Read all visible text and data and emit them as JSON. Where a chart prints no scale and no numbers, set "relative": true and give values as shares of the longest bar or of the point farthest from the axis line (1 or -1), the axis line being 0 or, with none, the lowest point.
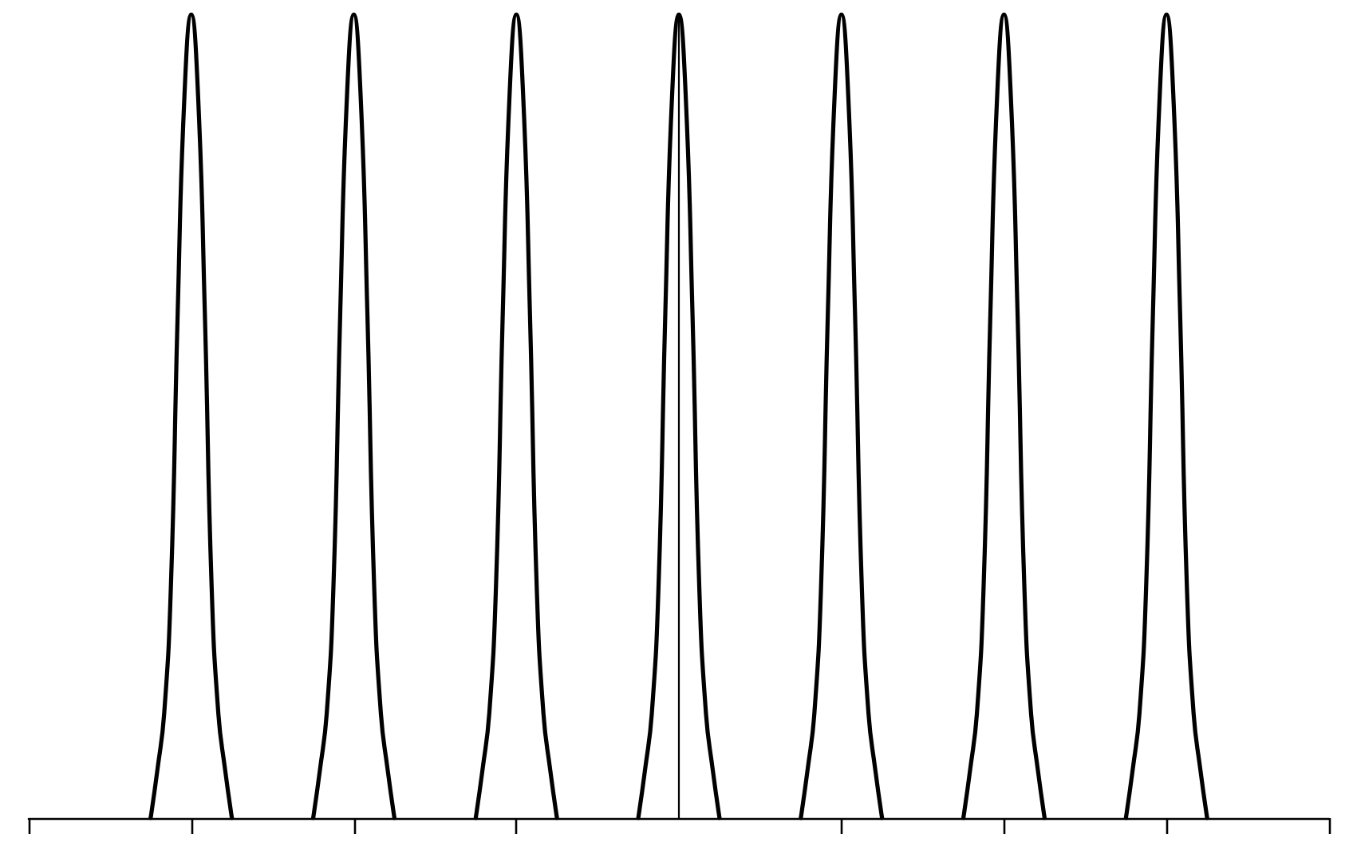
{
  "chart_data": {
    "type": "line",
    "relative": true,
    "marker": "none",
    "line_style": "solid",
    "categories": [
      null,
      null,
      null,
      null,
      null,
      null,
      null,
      null,
      null,
      null,
      null,
      null,
      null,
      null,
      null,
      null,
      null,
      null,
      null,
      null,
      null,
      null,
      null,
      null,
      null,
      null,
      null,
      null,
      null,
      null,
      null,
      null,
      null,
      null,
      null,
      null,
      null,
      null,
      null,
      null,
      null,
      null,
      null,
      null,
      null,
      null,
      null,
      null,
      null,
      null,
      null,
      null,
      null,
      null,
      null,
      null,
      null,
      null,
      null,
      null,
      null,
      null,
      null,
      null,
      null,
      null,
      null,
      null,
      null,
      null,
      null,
      null,
      null,
      null,
      null,
      null,
      null,
      null,
      null,
      null,
      null,
      null,
      null,
      null,
      null,
      null,
      null,
      null,
      null,
      null,
      null,
      null,
      null,
      null,
      null,
      null,
      null,
      null,
      null,
      null,
      null,
      null,
      null,
      null,
      null,
      null,
      null,
      null,
      null,
      null,
      null,
      null,
      null,
      null,
      null,
      null,
      null,
      null,
      null,
      null,
      null,
      null,
      null,
      null,
      null,
      null,
      null,
      null,
      null,
      null,
      null,
      null,
      null,
      null,
      null,
      null,
      null,
      null,
      null,
      null,
      null,
      null,
      null,
      null,
      null,
      null,
      null,
      null,
      null,
      null,
      null,
      null,
      null,
      null,
      null,
      null,
      null,
      null,
      null,
      null,
      null,
      null,
      null,
      null,
      null,
      null,
      null,
      null,
      null,
      null,
      null,
      null,
      null,
      null,
      null,
      null,
      null,
      null,
      null,
      null,
      null,
      null,
      null,
      null,
      null,
      null,
      null,
      null,
      null,
      null,
      null,
      null,
      null
    ],
    "series": [
      {
        "color": "#000000",
        "values": [
          null,
          null,
          null,
          null,
          null,
          null,
          null,
          null,
          null,
          null,
          null,
          null,
          null,
          null,
          null,
          null,
          null,
          null,
          0,
          0.06,
          0.13,
          0.29,
          0.63,
          0.9,
          1,
          0.9,
          0.63,
          0.29,
          0.13,
          0.06,
          0,
          null,
          null,
          null,
          null,
          null,
          null,
          null,
          null,
          null,
          null,
          null,
          null,
          null,
          null,
          null,
          null,
          null,
          null,
          null,
          null,
          null,
          null,
          null,
          null,
          null,
          null,
          null,
          null,
          null,
          null,
          null,
          null,
          null,
          null,
          null,
          null,
          null,
          null,
          null,
          null,
          null,
          null,
          null,
          null,
          null,
          null,
          null,
          null,
          null,
          null,
          null,
          null,
          null,
          null,
          null,
          null,
          null,
          null,
          null,
          null,
          null,
          null,
          null,
          null,
          null,
          null,
          null,
          null,
          null,
          null,
          null,
          null,
          null,
          null,
          null,
          null,
          null,
          null,
          null,
          null,
          null,
          null,
          null,
          null,
          null,
          null,
          null,
          null,
          null,
          null,
          null,
          null,
          null,
          null,
          null,
          null,
          null,
          null,
          null,
          null,
          null,
          null,
          null,
          null,
          null,
          null,
          null,
          null,
          null,
          null,
          null,
          null,
          null,
          null,
          null,
          null,
          null,
          null,
          null,
          null,
          null,
          null,
          null,
          null,
          null,
          null,
          null,
          null,
          null,
          null,
          null,
          null,
          null,
          null,
          null,
          null,
          null,
          null,
          null,
          null,
          null,
          null,
          null,
          null,
          null,
          null,
          null,
          null,
          null,
          null,
          null,
          null,
          null,
          null,
          null,
          null,
          null,
          null,
          null,
          null,
          null,
          null
        ]
      },
      {
        "color": "#000000",
        "values": [
          null,
          null,
          null,
          null,
          null,
          null,
          null,
          null,
          null,
          null,
          null,
          null,
          null,
          null,
          null,
          null,
          null,
          null,
          null,
          null,
          null,
          null,
          null,
          null,
          null,
          null,
          null,
          null,
          null,
          null,
          null,
          null,
          null,
          null,
          null,
          null,
          null,
          null,
          null,
          null,
          null,
          null,
          0,
          0.06,
          0.13,
          0.29,
          0.63,
          0.9,
          1,
          0.9,
          0.63,
          0.29,
          0.13,
          0.06,
          0,
          null,
          null,
          null,
          null,
          null,
          null,
          null,
          null,
          null,
          null,
          null,
          null,
          null,
          null,
          null,
          null,
          null,
          null,
          null,
          null,
          null,
          null,
          null,
          null,
          null,
          null,
          null,
          null,
          null,
          null,
          null,
          null,
          null,
          null,
          null,
          null,
          null,
          null,
          null,
          null,
          null,
          null,
          null,
          null,
          null,
          null,
          null,
          null,
          null,
          null,
          null,
          null,
          null,
          null,
          null,
          null,
          null,
          null,
          null,
          null,
          null,
          null,
          null,
          null,
          null,
          null,
          null,
          null,
          null,
          null,
          null,
          null,
          null,
          null,
          null,
          null,
          null,
          null,
          null,
          null,
          null,
          null,
          null,
          null,
          null,
          null,
          null,
          null,
          null,
          null,
          null,
          null,
          null,
          null,
          null,
          null,
          null,
          null,
          null,
          null,
          null,
          null,
          null,
          null,
          null,
          null,
          null,
          null,
          null,
          null,
          null,
          null,
          null,
          null,
          null,
          null,
          null,
          null,
          null,
          null,
          null,
          null,
          null,
          null,
          null,
          null,
          null,
          null,
          null,
          null,
          null,
          null,
          null,
          null,
          null,
          null,
          null,
          null
        ]
      },
      {
        "color": "#000000",
        "values": [
          null,
          null,
          null,
          null,
          null,
          null,
          null,
          null,
          null,
          null,
          null,
          null,
          null,
          null,
          null,
          null,
          null,
          null,
          null,
          null,
          null,
          null,
          null,
          null,
          null,
          null,
          null,
          null,
          null,
          null,
          null,
          null,
          null,
          null,
          null,
          null,
          null,
          null,
          null,
          null,
          null,
          null,
          null,
          null,
          null,
          null,
          null,
          null,
          null,
          null,
          null,
          null,
          null,
          null,
          null,
          null,
          null,
          null,
          null,
          null,
          null,
          null,
          null,
          null,
          null,
          null,
          0,
          0.06,
          0.13,
          0.29,
          0.63,
          0.9,
          1,
          0.9,
          0.63,
          0.29,
          0.13,
          0.06,
          0,
          null,
          null,
          null,
          null,
          null,
          null,
          null,
          null,
          null,
          null,
          null,
          null,
          null,
          null,
          null,
          null,
          null,
          null,
          null,
          null,
          null,
          null,
          null,
          null,
          null,
          null,
          null,
          null,
          null,
          null,
          null,
          null,
          null,
          null,
          null,
          null,
          null,
          null,
          null,
          null,
          null,
          null,
          null,
          null,
          null,
          null,
          null,
          null,
          null,
          null,
          null,
          null,
          null,
          null,
          null,
          null,
          null,
          null,
          null,
          null,
          null,
          null,
          null,
          null,
          null,
          null,
          null,
          null,
          null,
          null,
          null,
          null,
          null,
          null,
          null,
          null,
          null,
          null,
          null,
          null,
          null,
          null,
          null,
          null,
          null,
          null,
          null,
          null,
          null,
          null,
          null,
          null,
          null,
          null,
          null,
          null,
          null,
          null,
          null,
          null,
          null,
          null,
          null,
          null,
          null,
          null,
          null,
          null,
          null,
          null,
          null,
          null,
          null,
          null
        ]
      },
      {
        "color": "#000000",
        "values": [
          null,
          null,
          null,
          null,
          null,
          null,
          null,
          null,
          null,
          null,
          null,
          null,
          null,
          null,
          null,
          null,
          null,
          null,
          null,
          null,
          null,
          null,
          null,
          null,
          null,
          null,
          null,
          null,
          null,
          null,
          null,
          null,
          null,
          null,
          null,
          null,
          null,
          null,
          null,
          null,
          null,
          null,
          null,
          null,
          null,
          null,
          null,
          null,
          null,
          null,
          null,
          null,
          null,
          null,
          null,
          null,
          null,
          null,
          null,
          null,
          null,
          null,
          null,
          null,
          null,
          null,
          null,
          null,
          null,
          null,
          null,
          null,
          null,
          null,
          null,
          null,
          null,
          null,
          null,
          null,
          null,
          null,
          null,
          null,
          null,
          null,
          null,
          null,
          null,
          null,
          0,
          0.06,
          0.13,
          0.29,
          0.63,
          0.9,
          1,
          0.9,
          0.63,
          0.29,
          0.13,
          0.06,
          0,
          null,
          null,
          null,
          null,
          null,
          null,
          null,
          null,
          null,
          null,
          null,
          null,
          null,
          null,
          null,
          null,
          null,
          null,
          null,
          null,
          null,
          null,
          null,
          null,
          null,
          null,
          null,
          null,
          null,
          null,
          null,
          null,
          null,
          null,
          null,
          null,
          null,
          null,
          null,
          null,
          null,
          null,
          null,
          null,
          null,
          null,
          null,
          null,
          null,
          null,
          null,
          null,
          null,
          null,
          null,
          null,
          null,
          null,
          null,
          null,
          null,
          null,
          null,
          null,
          null,
          null,
          null,
          null,
          null,
          null,
          null,
          null,
          null,
          null,
          null,
          null,
          null,
          null,
          null,
          null,
          null,
          null,
          null,
          null,
          null,
          null,
          null,
          null,
          null,
          null
        ]
      },
      {
        "color": "#000000",
        "values": [
          null,
          null,
          null,
          null,
          null,
          null,
          null,
          null,
          null,
          null,
          null,
          null,
          null,
          null,
          null,
          null,
          null,
          null,
          null,
          null,
          null,
          null,
          null,
          null,
          null,
          null,
          null,
          null,
          null,
          null,
          null,
          null,
          null,
          null,
          null,
          null,
          null,
          null,
          null,
          null,
          null,
          null,
          null,
          null,
          null,
          null,
          null,
          null,
          null,
          null,
          null,
          null,
          null,
          null,
          null,
          null,
          null,
          null,
          null,
          null,
          null,
          null,
          null,
          null,
          null,
          null,
          null,
          null,
          null,
          null,
          null,
          null,
          null,
          null,
          null,
          null,
          null,
          null,
          null,
          null,
          null,
          null,
          null,
          null,
          null,
          null,
          null,
          null,
          null,
          null,
          null,
          null,
          null,
          null,
          null,
          null,
          null,
          null,
          null,
          null,
          null,
          null,
          null,
          null,
          null,
          null,
          null,
          null,
          null,
          null,
          null,
          null,
          null,
          null,
          0,
          0.06,
          0.13,
          0.29,
          0.63,
          0.9,
          1,
          0.9,
          0.63,
          0.29,
          0.13,
          0.06,
          0,
          null,
          null,
          null,
          null,
          null,
          null,
          null,
          null,
          null,
          null,
          null,
          null,
          null,
          null,
          null,
          null,
          null,
          null,
          null,
          null,
          null,
          null,
          null,
          null,
          null,
          null,
          null,
          null,
          null,
          null,
          null,
          null,
          null,
          null,
          null,
          null,
          null,
          null,
          null,
          null,
          null,
          null,
          null,
          null,
          null,
          null,
          null,
          null,
          null,
          null,
          null,
          null,
          null,
          null,
          null,
          null,
          null,
          null,
          null,
          null,
          null,
          null,
          null,
          null,
          null,
          null
        ]
      },
      {
        "color": "#000000",
        "values": [
          null,
          null,
          null,
          null,
          null,
          null,
          null,
          null,
          null,
          null,
          null,
          null,
          null,
          null,
          null,
          null,
          null,
          null,
          null,
          null,
          null,
          null,
          null,
          null,
          null,
          null,
          null,
          null,
          null,
          null,
          null,
          null,
          null,
          null,
          null,
          null,
          null,
          null,
          null,
          null,
          null,
          null,
          null,
          null,
          null,
          null,
          null,
          null,
          null,
          null,
          null,
          null,
          null,
          null,
          null,
          null,
          null,
          null,
          null,
          null,
          null,
          null,
          null,
          null,
          null,
          null,
          null,
          null,
          null,
          null,
          null,
          null,
          null,
          null,
          null,
          null,
          null,
          null,
          null,
          null,
          null,
          null,
          null,
          null,
          null,
          null,
          null,
          null,
          null,
          null,
          null,
          null,
          null,
          null,
          null,
          null,
          null,
          null,
          null,
          null,
          null,
          null,
          null,
          null,
          null,
          null,
          null,
          null,
          null,
          null,
          null,
          null,
          null,
          null,
          null,
          null,
          null,
          null,
          null,
          null,
          null,
          null,
          null,
          null,
          null,
          null,
          null,
          null,
          null,
          null,
          null,
          null,
          null,
          null,
          null,
          null,
          null,
          null,
          0,
          0.06,
          0.13,
          0.29,
          0.63,
          0.9,
          1,
          0.9,
          0.63,
          0.29,
          0.13,
          0.06,
          0,
          null,
          null,
          null,
          null,
          null,
          null,
          null,
          null,
          null,
          null,
          null,
          null,
          null,
          null,
          null,
          null,
          null,
          null,
          null,
          null,
          null,
          null,
          null,
          null,
          null,
          null,
          null,
          null,
          null,
          null,
          null,
          null,
          null,
          null,
          null,
          null,
          null,
          null,
          null,
          null,
          null,
          null
        ]
      },
      {
        "color": "#000000",
        "values": [
          null,
          null,
          null,
          null,
          null,
          null,
          null,
          null,
          null,
          null,
          null,
          null,
          null,
          null,
          null,
          null,
          null,
          null,
          null,
          null,
          null,
          null,
          null,
          null,
          null,
          null,
          null,
          null,
          null,
          null,
          null,
          null,
          null,
          null,
          null,
          null,
          null,
          null,
          null,
          null,
          null,
          null,
          null,
          null,
          null,
          null,
          null,
          null,
          null,
          null,
          null,
          null,
          null,
          null,
          null,
          null,
          null,
          null,
          null,
          null,
          null,
          null,
          null,
          null,
          null,
          null,
          null,
          null,
          null,
          null,
          null,
          null,
          null,
          null,
          null,
          null,
          null,
          null,
          null,
          null,
          null,
          null,
          null,
          null,
          null,
          null,
          null,
          null,
          null,
          null,
          null,
          null,
          null,
          null,
          null,
          null,
          null,
          null,
          null,
          null,
          null,
          null,
          null,
          null,
          null,
          null,
          null,
          null,
          null,
          null,
          null,
          null,
          null,
          null,
          null,
          null,
          null,
          null,
          null,
          null,
          null,
          null,
          null,
          null,
          null,
          null,
          null,
          null,
          null,
          null,
          null,
          null,
          null,
          null,
          null,
          null,
          null,
          null,
          null,
          null,
          null,
          null,
          null,
          null,
          null,
          null,
          null,
          null,
          null,
          null,
          null,
          null,
          null,
          null,
          null,
          null,
          null,
          null,
          null,
          null,
          null,
          null,
          0,
          0.06,
          0.13,
          0.29,
          0.63,
          0.9,
          1,
          0.9,
          0.63,
          0.29,
          0.13,
          0.06,
          0,
          null,
          null,
          null,
          null,
          null,
          null,
          null,
          null,
          null,
          null,
          null,
          null,
          null,
          null,
          null,
          null,
          null,
          null
        ]
      }
    ]
  }
}
